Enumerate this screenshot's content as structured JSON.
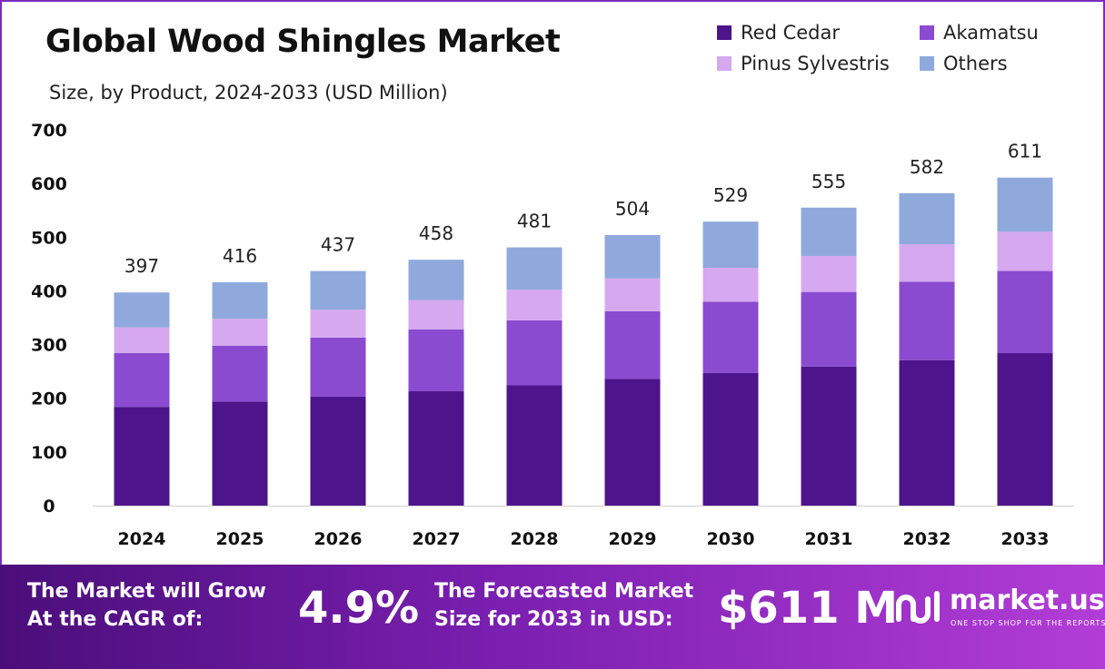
{
  "colors": {
    "red_cedar": "#4e148c",
    "akamatsu": "#8a4bd0",
    "pinus_sylvestris": "#d6a8ef",
    "others": "#8fa9dc",
    "frame": "#7b2cbf"
  },
  "chart_data": {
    "type": "bar",
    "stacked": true,
    "title": "Global Wood Shingles Market",
    "subtitle": "Size, by Product, 2024-2033 (USD Million)",
    "xlabel": "",
    "ylabel": "",
    "ylim": [
      0,
      700
    ],
    "yticks": [
      "0",
      "100",
      "200",
      "300",
      "400",
      "500",
      "600",
      "700"
    ],
    "ytick_values": [
      0,
      100,
      200,
      300,
      400,
      500,
      600,
      700
    ],
    "categories": [
      "2024",
      "2025",
      "2026",
      "2027",
      "2028",
      "2029",
      "2030",
      "2031",
      "2032",
      "2033"
    ],
    "series": [
      {
        "name": "Red Cedar",
        "color": "#4e148c",
        "values": [
          184,
          194,
          203,
          213,
          224,
          236,
          247,
          259,
          271,
          284
        ]
      },
      {
        "name": "Akamatsu",
        "color": "#8a4bd0",
        "values": [
          100,
          104,
          110,
          115,
          121,
          126,
          133,
          139,
          146,
          153
        ]
      },
      {
        "name": "Pinus Sylvestris",
        "color": "#d6a8ef",
        "values": [
          48,
          50,
          52,
          55,
          57,
          61,
          63,
          67,
          70,
          73
        ]
      },
      {
        "name": "Others",
        "color": "#8fa9dc",
        "values": [
          65,
          68,
          72,
          75,
          79,
          81,
          86,
          90,
          95,
          101
        ]
      }
    ],
    "totals": [
      "397",
      "416",
      "437",
      "458",
      "481",
      "504",
      "529",
      "555",
      "582",
      "611"
    ],
    "legend_position": "top-right",
    "grid": false
  },
  "legend": {
    "red_cedar": "Red Cedar",
    "akamatsu": "Akamatsu",
    "pinus_sylvestris": "Pinus Sylvestris",
    "others": "Others"
  },
  "footer": {
    "cagr_label_line1": "The Market will Grow",
    "cagr_label_line2": "At the CAGR of:",
    "cagr_value": "4.9%",
    "forecast_label_line1": "The Forecasted Market",
    "forecast_label_line2": "Size for 2033 in USD:",
    "forecast_value": "$611 M",
    "brand_name": "market.us",
    "brand_tagline": "ONE STOP SHOP FOR THE REPORTS"
  }
}
